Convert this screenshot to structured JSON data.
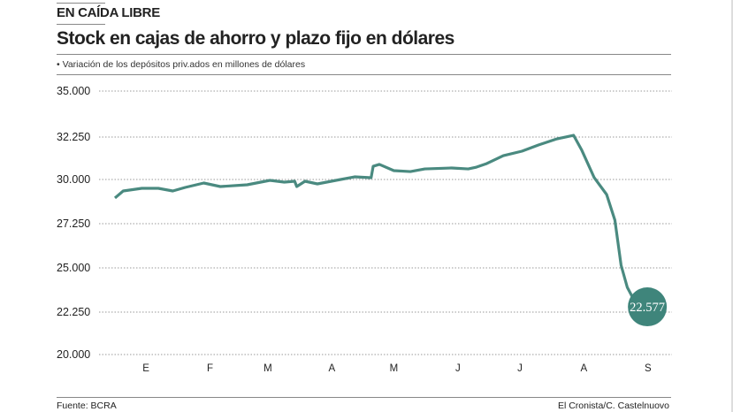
{
  "kicker": "EN CAÍDA LIBRE",
  "title": "Stock en cajas de ahorro y plazo fijo en dólares",
  "subtitle": "• Variación de los depósitos priv.ados en millones de dólares",
  "source": "Fuente: BCRA",
  "credit": "El Cronista/C. Castelnuovo",
  "chart_data": {
    "type": "line",
    "title": "Stock en cajas de ahorro y plazo fijo en dólares",
    "ylabel": "",
    "xlabel": "",
    "ylim": [
      20000,
      35000
    ],
    "y_ticks": [
      "35.000",
      "32.250",
      "30.000",
      "27.250",
      "25.000",
      "22.250",
      "20.000"
    ],
    "y_tick_values": [
      35000,
      32250,
      30000,
      27250,
      25000,
      22250,
      20000
    ],
    "x_ticks": [
      "E",
      "F",
      "M",
      "A",
      "M",
      "J",
      "J",
      "A",
      "S"
    ],
    "grid": true,
    "line_color": "#4a8a80",
    "end_label": "22.577",
    "series": [
      {
        "x": [
          "02/01",
          "06/01",
          "15/01",
          "23/01",
          "30/01",
          "05/02",
          "14/02",
          "22/02",
          "07/03",
          "18/03",
          "25/03",
          "30/03",
          "31/03",
          "04/04",
          "10/04",
          "19/04",
          "28/04",
          "06/05",
          "07/05",
          "10/05",
          "17/05",
          "25/05",
          "01/06",
          "14/06",
          "22/06",
          "26/06",
          "01/07",
          "09/07",
          "18/07",
          "26/07",
          "04/08",
          "12/08",
          "16/08",
          "22/08",
          "28/08",
          "01/09",
          "04/09",
          "07/09",
          "12/09"
        ],
        "y": [
          28850,
          29285,
          29450,
          29450,
          29285,
          29505,
          29780,
          29560,
          29670,
          29945,
          29835,
          29890,
          29560,
          29890,
          29725,
          29945,
          30140,
          30095,
          30700,
          30800,
          30470,
          30420,
          30560,
          30610,
          30560,
          30655,
          30845,
          31265,
          31500,
          31830,
          32155,
          32355,
          31545,
          30095,
          29065,
          27470,
          25135,
          23790,
          22577
        ]
      }
    ]
  }
}
